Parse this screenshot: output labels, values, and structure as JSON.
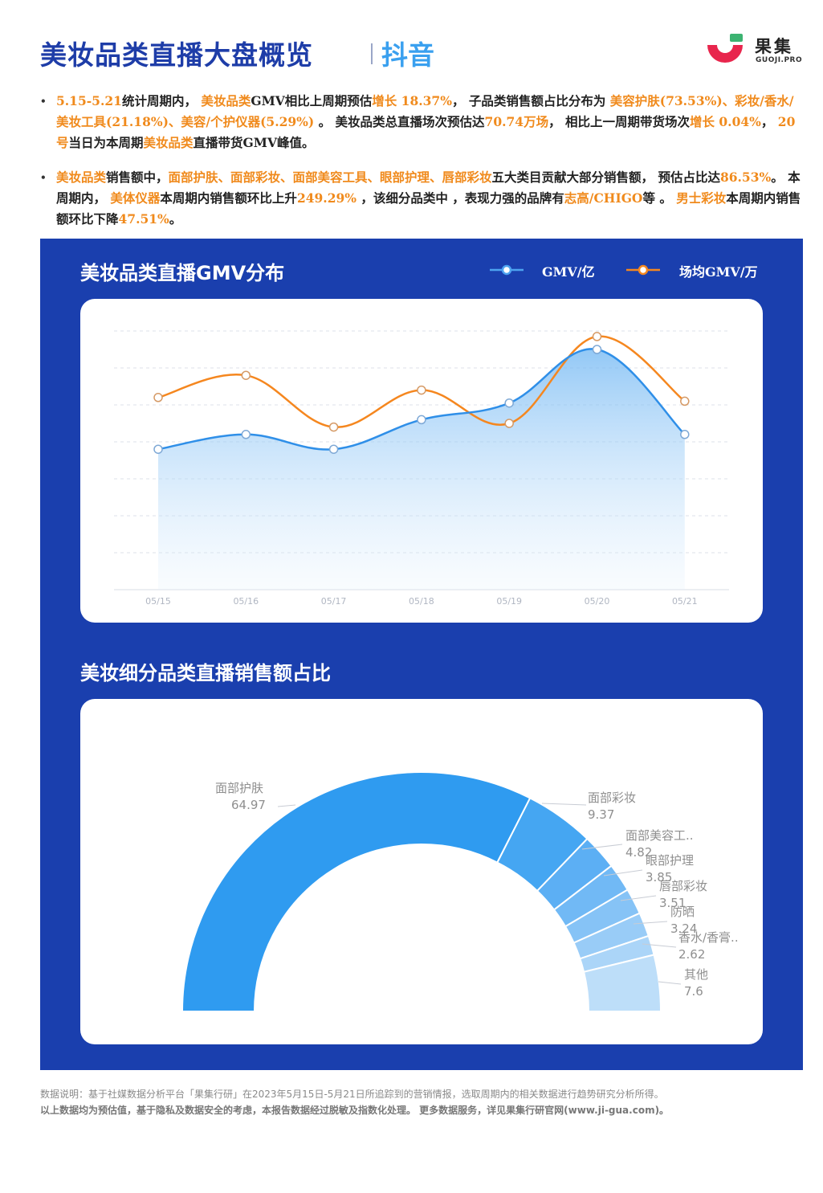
{
  "header": {
    "title": "美妆品类直播大盘概览",
    "platform": "抖音",
    "logo_name": "果集",
    "logo_sub": "GUOJI.PRO"
  },
  "summary": {
    "p1": [
      {
        "t": "5.15-5.21",
        "h": true
      },
      {
        "t": "统计周期内， ",
        "h": false
      },
      {
        "t": "美妆品类",
        "h": true
      },
      {
        "t": "GMV相比上周期预估",
        "h": false
      },
      {
        "t": "增长 18.37%",
        "h": true
      },
      {
        "t": "， 子品类销售额占比分布为 ",
        "h": false
      },
      {
        "t": "美容护肤(73.53%)、彩妆/香水/美妆工具(21.18%)、美容/个护仪器(5.29%)",
        "h": true
      },
      {
        "t": " 。 美妆品类总直播场次预估达",
        "h": false
      },
      {
        "t": "70.74万场",
        "h": true
      },
      {
        "t": "， 相比上一周期带货场次",
        "h": false
      },
      {
        "t": "增长 0.04%",
        "h": true
      },
      {
        "t": "， ",
        "h": false
      },
      {
        "t": "20号",
        "h": true
      },
      {
        "t": "当日为本周期",
        "h": false
      },
      {
        "t": "美妆品类",
        "h": true
      },
      {
        "t": "直播带货GMV峰值。",
        "h": false
      }
    ],
    "p2": [
      {
        "t": "美妆品类",
        "h": true
      },
      {
        "t": "销售额中，",
        "h": false
      },
      {
        "t": "面部护肤、面部彩妆、面部美容工具、眼部护理、唇部彩妆",
        "h": true
      },
      {
        "t": "五大类目贡献大部分销售额， 预估占比达",
        "h": false
      },
      {
        "t": "86.53%",
        "h": true
      },
      {
        "t": "。 本周期内， ",
        "h": false
      },
      {
        "t": "美体仪器",
        "h": true
      },
      {
        "t": "本周期内销售额环比上升",
        "h": false
      },
      {
        "t": "249.29%",
        "h": true
      },
      {
        "t": " ，该细分品类中 ，表现力强的品牌有",
        "h": false
      },
      {
        "t": "志高/CHIGO",
        "h": true
      },
      {
        "t": "等 。 ",
        "h": false
      },
      {
        "t": "男士彩妆",
        "h": true
      },
      {
        "t": "本周期内销售额环比下降",
        "h": false
      },
      {
        "t": "47.51%",
        "h": true
      },
      {
        "t": "。",
        "h": false
      }
    ]
  },
  "chart_data": [
    {
      "type": "line",
      "title": "美妆品类直播GMV分布",
      "categories": [
        "05/15",
        "05/16",
        "05/17",
        "05/18",
        "05/19",
        "05/20",
        "05/21"
      ],
      "series": [
        {
          "name": "GMV/亿",
          "color": "#2f8fe8",
          "values": [
            3.8,
            4.2,
            3.8,
            4.6,
            5.05,
            6.5,
            4.2
          ]
        },
        {
          "name": "场均GMV/万",
          "color": "#f5871f",
          "values": [
            5.2,
            5.8,
            4.4,
            5.4,
            4.5,
            6.85,
            5.1
          ]
        }
      ],
      "ylim": [
        0,
        7
      ],
      "grid": true,
      "legend": "top-right"
    },
    {
      "type": "pie",
      "subtype": "half-donut",
      "title": "美妆细分品类直播销售额占比",
      "slices": [
        {
          "label": "面部护肤",
          "value": 64.97,
          "color": "#2f9bf0"
        },
        {
          "label": "面部彩妆",
          "value": 9.37,
          "color": "#45a6f2"
        },
        {
          "label": "面部美容工..",
          "value": 4.82,
          "color": "#5caff4"
        },
        {
          "label": "眼部护理",
          "value": 3.85,
          "color": "#71b9f5"
        },
        {
          "label": "唇部彩妆",
          "value": 3.51,
          "color": "#86c3f6"
        },
        {
          "label": "防晒",
          "value": 3.24,
          "color": "#99ccf7"
        },
        {
          "label": "香水/香膏..",
          "value": 2.62,
          "color": "#abd5f8"
        },
        {
          "label": "其他",
          "value": 7.6,
          "color": "#bddef9"
        }
      ]
    }
  ],
  "footer": {
    "line1": "数据说明：基于社媒数据分析平台「果集行研」在2023年5月15日-5月21日所追踪到的营销情报，选取周期内的相关数据进行趋势研究分析所得。",
    "line2": "以上数据均为预估值，基于隐私及数据安全的考虑，本报告数据经过脱敏及指数化处理。 更多数据服务，详见果集行研官网(www.ji-gua.com)。"
  }
}
